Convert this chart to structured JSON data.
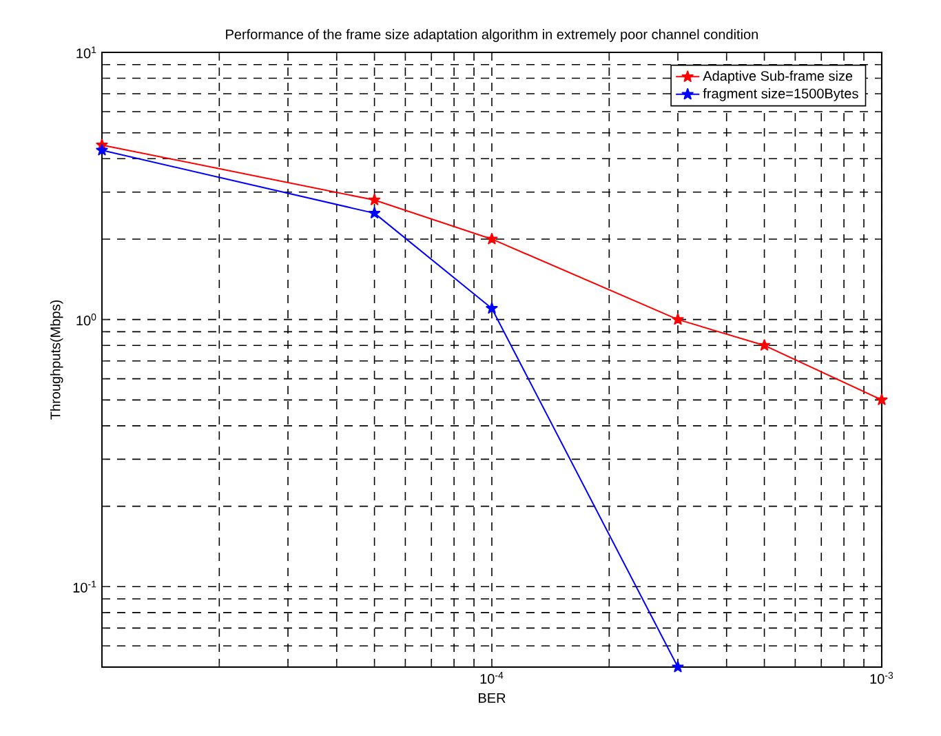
{
  "chart_data": {
    "type": "line",
    "title": "Performance of the frame size adaptation algorithm in extremely poor channel condition",
    "xlabel": "BER",
    "ylabel": "Throughputs(Mbps)",
    "log": "xy",
    "grid": true,
    "legend": "top right",
    "marker": "star",
    "line_style": "solid",
    "xlim": [
      1e-05,
      0.001
    ],
    "ylim": [
      0.05,
      10
    ],
    "xticks": [
      {
        "value": 0.0001,
        "label": "10$^{-4}$"
      },
      {
        "value": 0.001,
        "label": "10$^{-3}$"
      }
    ],
    "yticks": [
      {
        "value": 0.1,
        "label": "10$^{-1}$"
      },
      {
        "value": 1,
        "label": "10$^{0}$"
      },
      {
        "value": 10,
        "label": "10$^{1}$"
      }
    ],
    "series": [
      {
        "name": "Adaptive Sub-frame size",
        "color": "#ff0000",
        "x": [
          1e-05,
          5e-05,
          0.0001,
          0.0003,
          0.0005,
          0.001
        ],
        "values": [
          4.5,
          2.8,
          2.0,
          1.0,
          0.8,
          0.5
        ]
      },
      {
        "name": "fragment size=1500Bytes",
        "color": "#0000ff",
        "x": [
          1e-05,
          5e-05,
          0.0001,
          0.0003
        ],
        "values": [
          4.3,
          2.5,
          1.1,
          0.05
        ]
      }
    ]
  }
}
